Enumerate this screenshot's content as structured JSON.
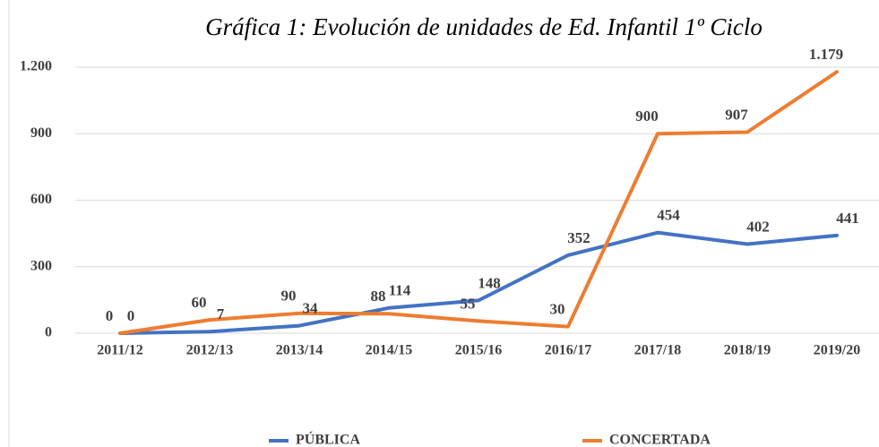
{
  "chart_data": {
    "type": "line",
    "title": "Gráfica 1: Evolución de unidades de Ed. Infantil 1º Ciclo",
    "categories": [
      "2011/12",
      "2012/13",
      "2013/14",
      "2014/15",
      "2015/16",
      "2016/17",
      "2017/18",
      "2018/19",
      "2019/20"
    ],
    "series": [
      {
        "name": "PÚBLICA",
        "color": "#4472c4",
        "values": [
          0,
          7,
          34,
          114,
          148,
          352,
          454,
          402,
          441
        ]
      },
      {
        "name": "CONCERTADA",
        "color": "#ed7d31",
        "values": [
          0,
          60,
          90,
          88,
          55,
          30,
          900,
          907,
          1179
        ],
        "value_labels": [
          "0",
          "60",
          "90",
          "88",
          "55",
          "30",
          "900",
          "907",
          "1.179"
        ]
      }
    ],
    "ylim": [
      0,
      1200
    ],
    "yticks": [
      0,
      300,
      600,
      900,
      {
        "value": 1200,
        "label": "1.200"
      }
    ],
    "grid": true
  }
}
